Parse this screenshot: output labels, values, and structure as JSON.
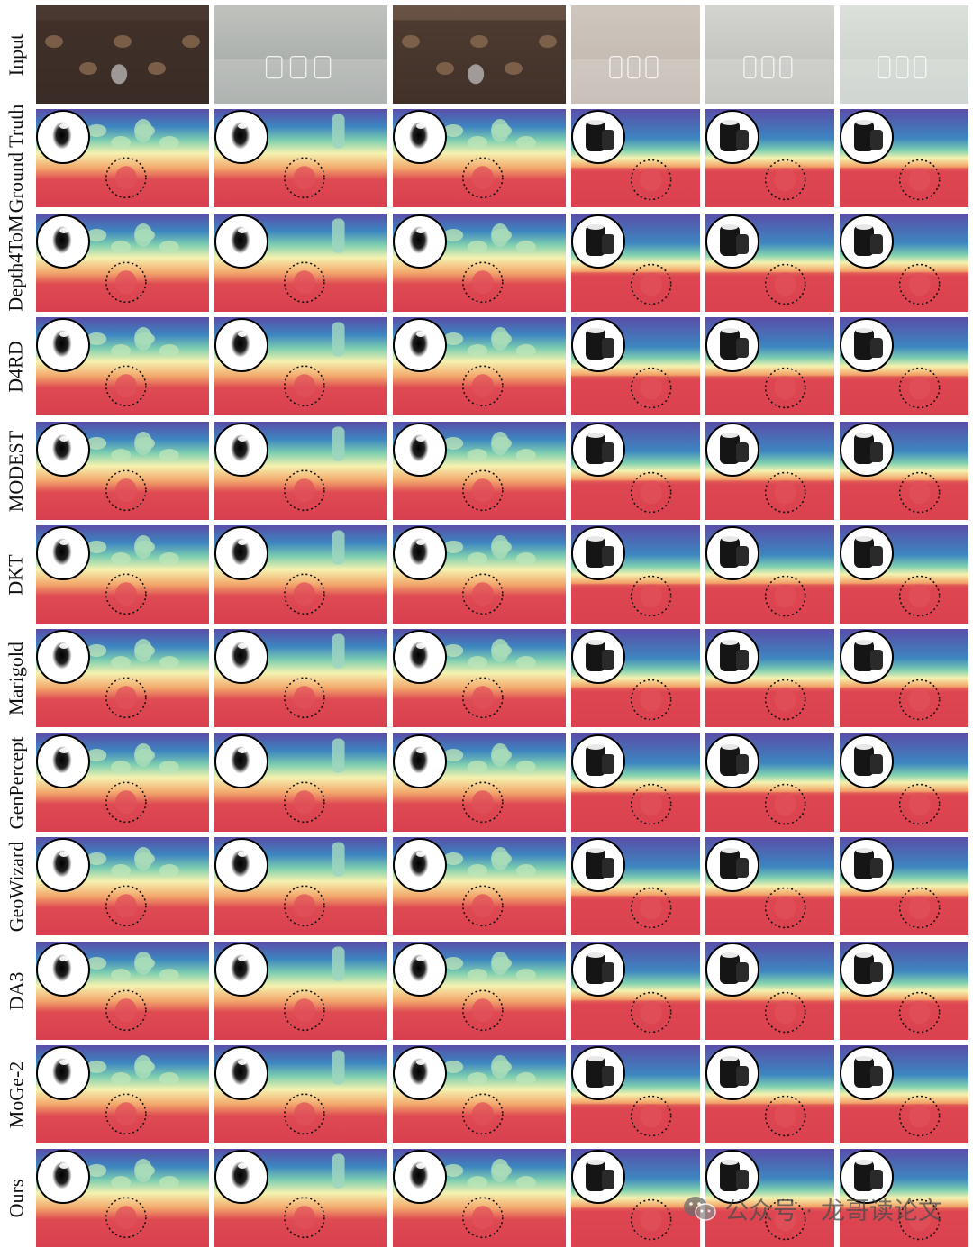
{
  "figure": {
    "rows": [
      {
        "label": "Input",
        "kind": "photo"
      },
      {
        "label": "Ground Truth",
        "kind": "depth"
      },
      {
        "label": "Depth4ToM",
        "kind": "depth"
      },
      {
        "label": "D4RD",
        "kind": "depth"
      },
      {
        "label": "MODEST",
        "kind": "depth"
      },
      {
        "label": "DKT",
        "kind": "depth"
      },
      {
        "label": "Marigold",
        "kind": "depth"
      },
      {
        "label": "GenPercept",
        "kind": "depth"
      },
      {
        "label": "GeoWizard",
        "kind": "depth"
      },
      {
        "label": "DA3",
        "kind": "depth"
      },
      {
        "label": "MoGe-2",
        "kind": "depth"
      },
      {
        "label": "Ours",
        "kind": "depth"
      }
    ],
    "scenes": [
      {
        "photo_tone": [
          "#3a2e2a",
          "#4a3a32"
        ],
        "type": "wood"
      },
      {
        "photo_tone": [
          "#9ea3a0",
          "#bfc2bd"
        ],
        "type": "grey"
      },
      {
        "photo_tone": [
          "#4a3a30",
          "#6a5446"
        ],
        "type": "wood"
      },
      {
        "photo_tone": [
          "#bdb3aa",
          "#cfc7bf"
        ],
        "type": "beige"
      },
      {
        "photo_tone": [
          "#b9bab4",
          "#d3d4cf"
        ],
        "type": "beige"
      },
      {
        "photo_tone": [
          "#c5ccc6",
          "#dce0da"
        ],
        "type": "beige"
      }
    ],
    "depth_colormap": [
      "#5a4ea8",
      "#3d86c0",
      "#7fcfb0",
      "#f5f2b0",
      "#f3a86c",
      "#de4a52",
      "#d93f4f"
    ]
  },
  "watermark": {
    "icon": "wechat-icon",
    "text": "公众号 · 龙哥读论文"
  }
}
